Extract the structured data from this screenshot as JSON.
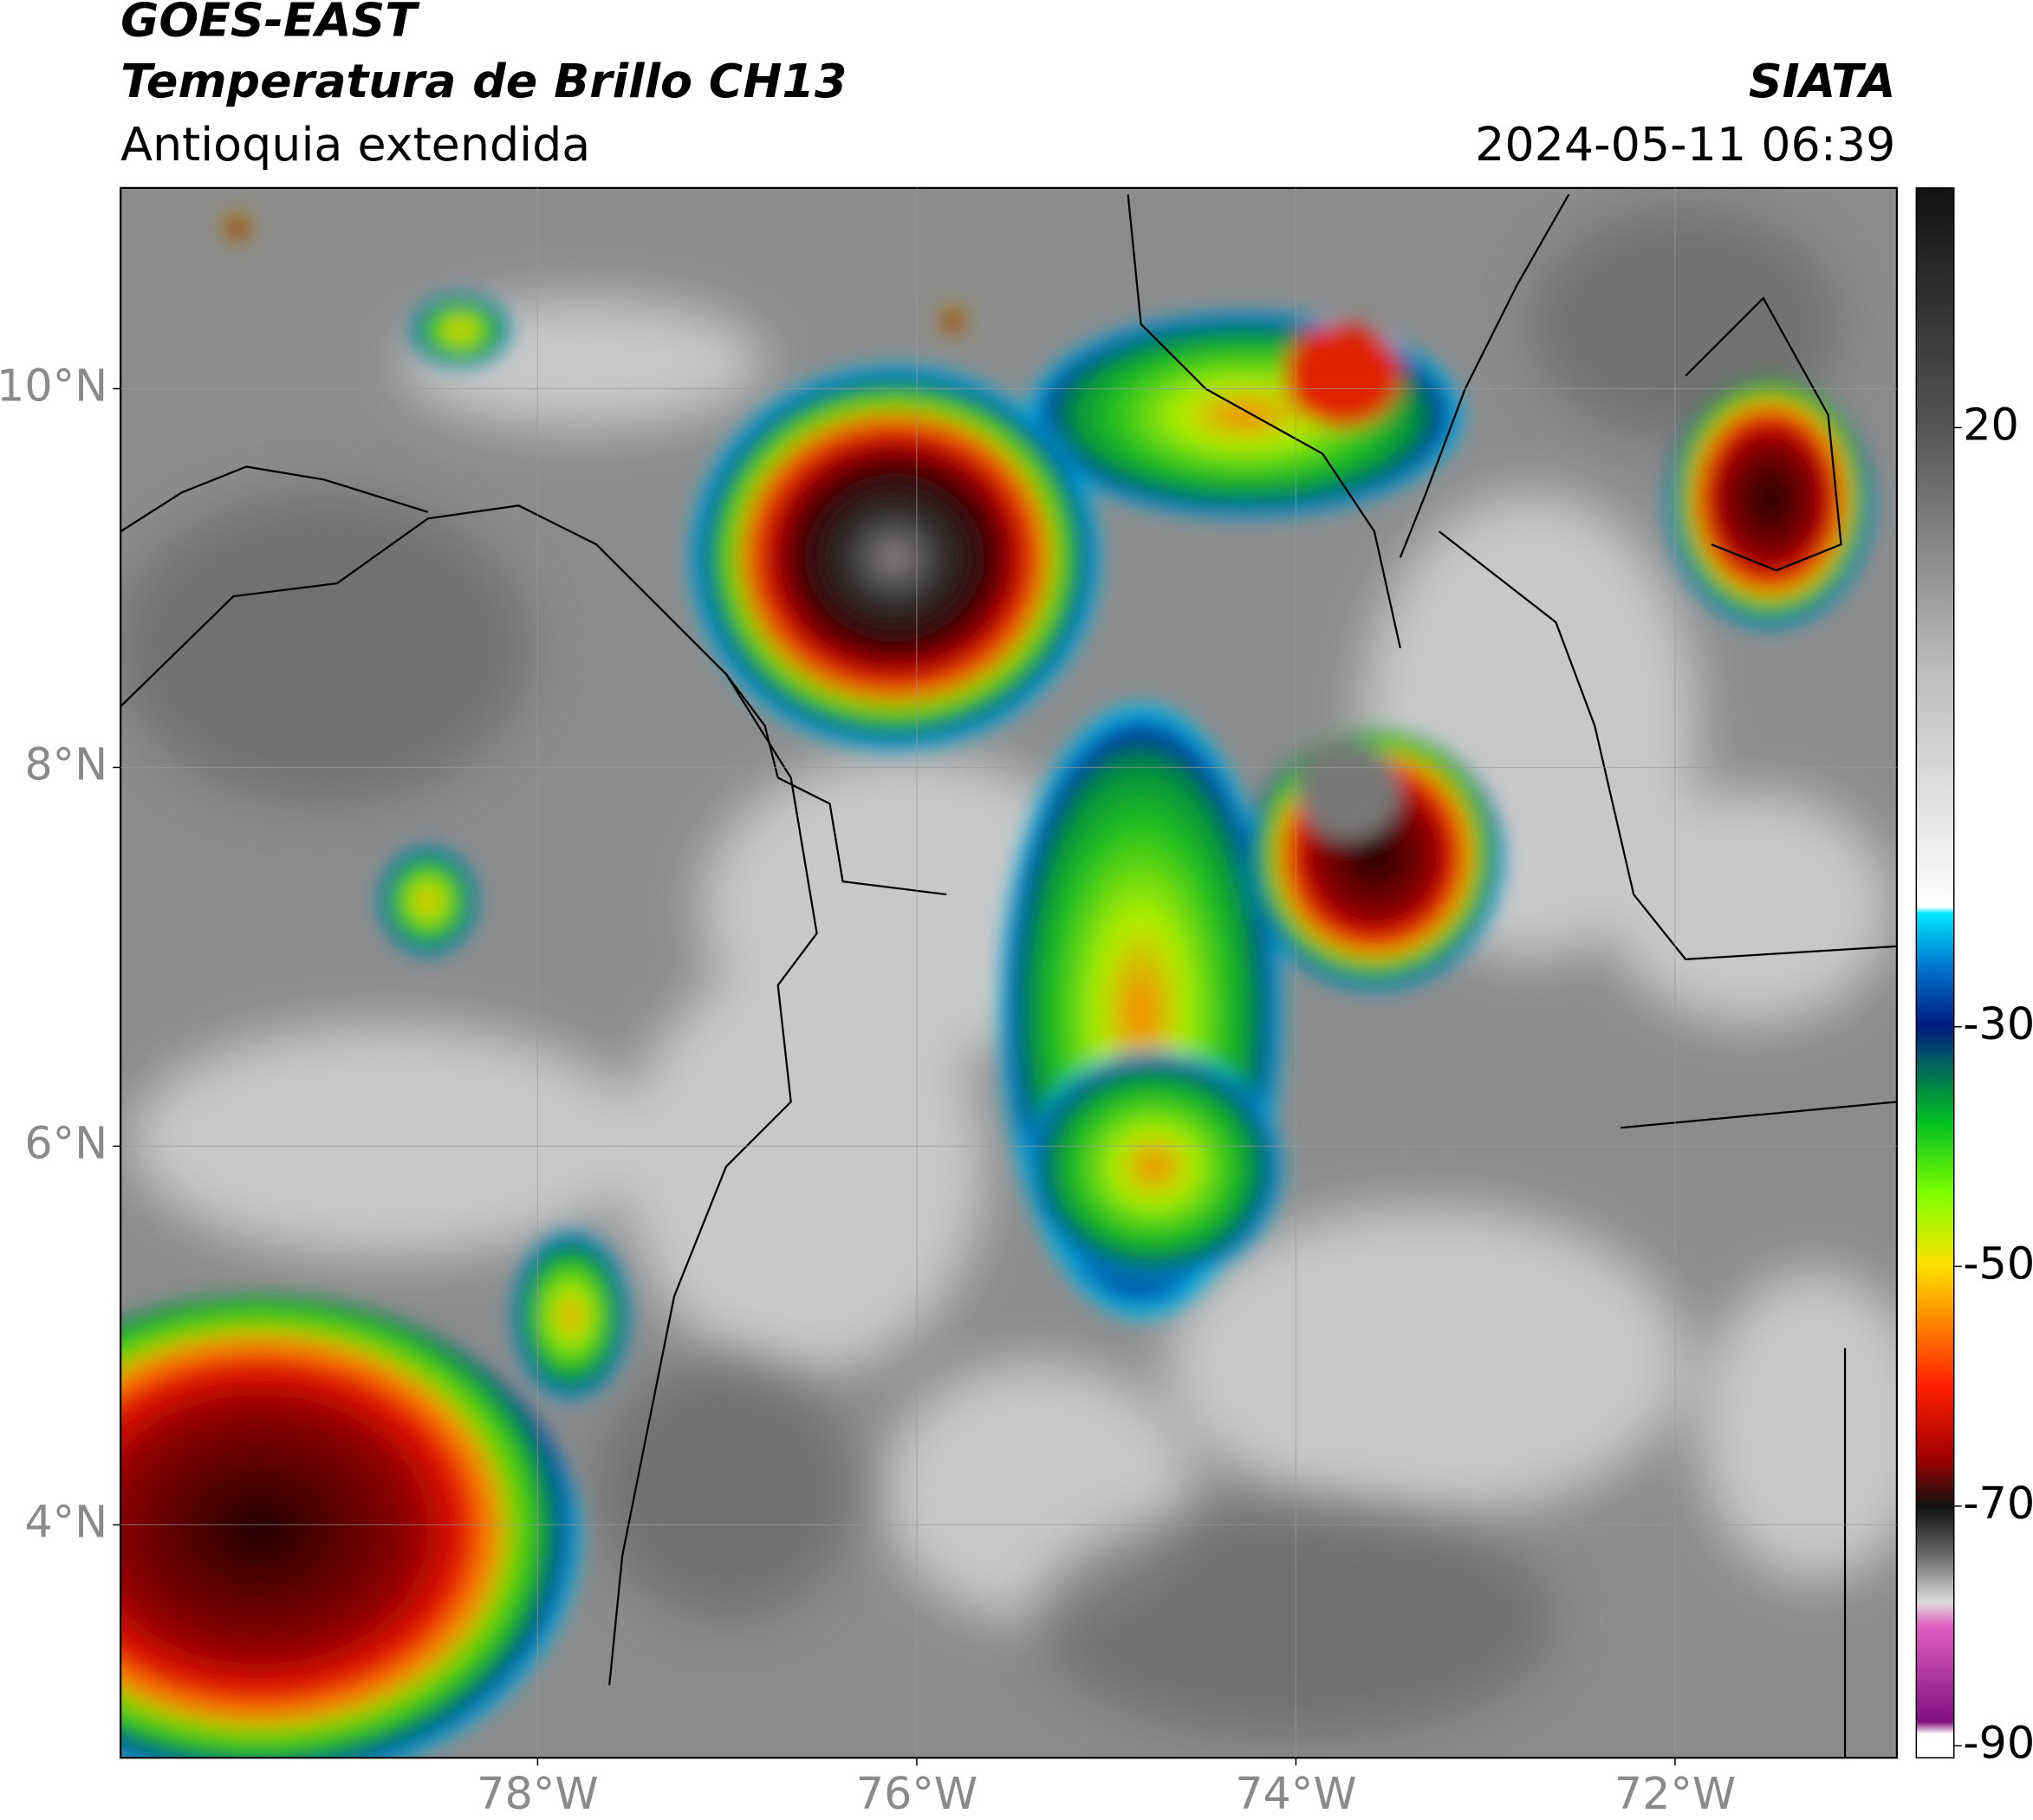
{
  "header": {
    "title": "GOES-EAST",
    "subtitle": "Temperatura de Brillo CH13",
    "region": "Antioquia extendida",
    "source": "SIATA",
    "timestamp": "2024-05-11 06:39"
  },
  "map": {
    "xlim": [
      -80.2,
      -70.83
    ],
    "ylim": [
      2.77,
      11.06
    ],
    "xticks": [
      {
        "value": -78,
        "label": "78°W"
      },
      {
        "value": -76,
        "label": "76°W"
      },
      {
        "value": -74,
        "label": "74°W"
      },
      {
        "value": -72,
        "label": "72°W"
      }
    ],
    "yticks": [
      {
        "value": 4,
        "label": "4°N"
      },
      {
        "value": 6,
        "label": "6°N"
      },
      {
        "value": 8,
        "label": "8°N"
      },
      {
        "value": 10,
        "label": "10°N"
      }
    ],
    "grid": true
  },
  "colorbar": {
    "lim": [
      -91,
      40
    ],
    "ticks": [
      -90,
      -70,
      -50,
      -30,
      20
    ]
  }
}
